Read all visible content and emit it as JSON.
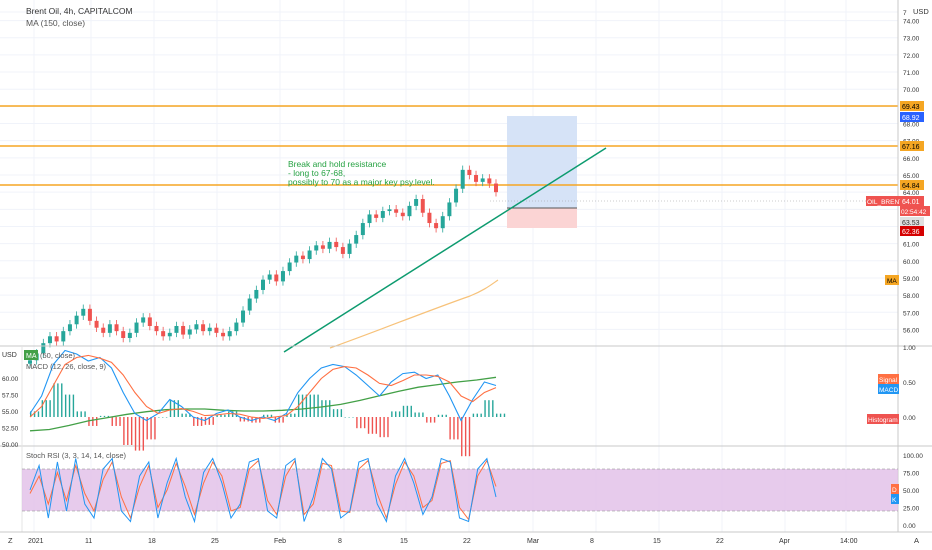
{
  "header": {
    "symbol": "Brent Oil, 4h, CAPITALCOM",
    "ma_label": "MA (150, close)",
    "currency": "USD"
  },
  "colors": {
    "up": "#26a69a",
    "down": "#ef5350",
    "orange_line": "#f5a623",
    "trend": "#0d9b6f",
    "ma": "#f7c27a",
    "macd_blue": "#2196f3",
    "signal_orange": "#ff7043",
    "ma50_green": "#43a047",
    "stoch_purple": "#e1bee7",
    "stoch_k": "#2196f3",
    "stoch_d": "#ff7043"
  },
  "annotation": [
    "Break and hold resistance",
    "- long to 67-68,",
    "possibly to 70 as a major key psy.level."
  ],
  "badges": {
    "res1": "69.43",
    "res1_blue": "68.92",
    "res2": "67.16",
    "res3": "64.84",
    "symbol": "OIL_BRENT",
    "price": "64.01",
    "countdown": "02:54:42",
    "stop1": "63.53",
    "stop2": "62.36",
    "ma": "MA",
    "signal": "Signal",
    "macd": "MACD",
    "histogram": "Histogram",
    "d": "D",
    "k": "K"
  },
  "macd_pane": {
    "usd": "USD",
    "ma_tag": "MA",
    "ma_label": "(50, close)",
    "macd_label": "MACD (12, 26, close, 9)"
  },
  "stoch_pane": {
    "label": "Stoch RSI (3, 3, 14, 14, close)"
  },
  "bottom": {
    "z_label": "Z",
    "a_label": "A",
    "time_ticks": [
      "2021",
      "11",
      "18",
      "25",
      "Feb",
      "8",
      "15",
      "22",
      "Mar",
      "8",
      "15",
      "22",
      "Apr",
      "14:00"
    ]
  },
  "chart_data": [
    {
      "type": "candlestick",
      "title": "Brent Oil, 4h, CAPITALCOM",
      "yaxis_ticks": [
        "7",
        "74.00",
        "73.00",
        "72.00",
        "71.00",
        "70.00",
        "69.00",
        "68.00",
        "67.00",
        "66.00",
        "65.00",
        "64.00",
        "63.00",
        "62.00",
        "61.00",
        "60.00",
        "59.00",
        "58.00",
        "57.00",
        "56.00"
      ],
      "ylim": [
        55.5,
        74.5
      ],
      "horizontal_levels": [
        69.43,
        67.16,
        64.84
      ],
      "last_price": 64.01,
      "trendline": {
        "x": [
          "Feb 2",
          "Mar 5"
        ],
        "y": [
          55.7,
          66.8
        ]
      },
      "ma150": {
        "x": [
          "Feb 4",
          "Feb 26"
        ],
        "y": [
          55.5,
          59.2
        ]
      },
      "long_position": {
        "entry": 64.01,
        "target": 69.0,
        "stop": 62.36
      },
      "close_path": [
        54.2,
        54.6,
        55.2,
        55.6,
        55.3,
        55.9,
        56.3,
        56.8,
        57.2,
        56.5,
        56.1,
        55.8,
        56.3,
        55.9,
        55.5,
        55.8,
        56.4,
        56.7,
        56.2,
        55.9,
        55.6,
        55.8,
        56.2,
        55.7,
        56.0,
        56.3,
        55.9,
        56.1,
        55.8,
        55.6,
        55.9,
        56.4,
        57.1,
        57.8,
        58.3,
        58.9,
        59.2,
        58.8,
        59.4,
        59.9,
        60.3,
        60.1,
        60.6,
        60.9,
        60.7,
        61.1,
        60.8,
        60.4,
        61.0,
        61.5,
        62.2,
        62.7,
        62.5,
        62.9,
        63.0,
        62.8,
        62.6,
        63.2,
        63.6,
        62.8,
        62.2,
        61.9,
        62.6,
        63.4,
        64.2,
        65.3,
        65.0,
        64.6,
        64.8,
        64.5,
        64.0
      ]
    },
    {
      "type": "line",
      "title": "MACD (12, 26, close, 9)",
      "yaxis_ticks": [
        "1.00",
        "0.50",
        "0.00"
      ],
      "ma50_ticks": [
        "60.00",
        "57.50",
        "55.00",
        "52.50",
        "50.00"
      ],
      "series": [
        {
          "name": "MACD",
          "values": [
            0.05,
            0.3,
            0.75,
            0.95,
            0.9,
            0.8,
            0.85,
            0.7,
            0.35,
            0.05,
            -0.05,
            0.05,
            0.25,
            0.15,
            0.0,
            -0.05,
            0.05,
            0.1,
            0.0,
            -0.05,
            0.0,
            -0.05,
            0.05,
            0.35,
            0.55,
            0.7,
            0.75,
            0.72,
            0.6,
            0.45,
            0.3,
            0.5,
            0.62,
            0.64,
            0.55,
            0.6,
            0.3,
            -0.05,
            0.25,
            0.5,
            0.45
          ]
        },
        {
          "name": "Signal",
          "values": [
            0.0,
            0.15,
            0.45,
            0.75,
            0.85,
            0.88,
            0.84,
            0.78,
            0.6,
            0.35,
            0.15,
            0.05,
            0.1,
            0.12,
            0.08,
            0.02,
            0.03,
            0.05,
            0.04,
            0.0,
            -0.02,
            0.0,
            0.02,
            0.15,
            0.35,
            0.55,
            0.68,
            0.72,
            0.7,
            0.6,
            0.48,
            0.45,
            0.52,
            0.6,
            0.6,
            0.58,
            0.5,
            0.3,
            0.22,
            0.35,
            0.42
          ]
        },
        {
          "name": "MA",
          "values": [
            52.0,
            52.2,
            52.8,
            53.5,
            54.0,
            54.5,
            54.9,
            55.2,
            55.3,
            55.3,
            55.1,
            55.0,
            55.0,
            55.1,
            55.3,
            55.6,
            56.0,
            56.6,
            57.3,
            58.0,
            58.6,
            59.0,
            59.4,
            59.7,
            60.1
          ]
        }
      ]
    },
    {
      "type": "line",
      "title": "Stoch RSI (3, 3, 14, 14, close)",
      "yaxis_ticks": [
        "100.00",
        "75.00",
        "50.00",
        "25.00",
        "0.00"
      ],
      "ylim": [
        0,
        100
      ],
      "bands": [
        80,
        20
      ],
      "series": [
        {
          "name": "K",
          "values": [
            50,
            85,
            10,
            90,
            20,
            95,
            30,
            10,
            80,
            95,
            20,
            5,
            70,
            90,
            10,
            60,
            95,
            40,
            5,
            75,
            95,
            60,
            10,
            30,
            90,
            95,
            20,
            10,
            85,
            95,
            5,
            40,
            95,
            80,
            10,
            20,
            90,
            95,
            30,
            5,
            70,
            95,
            60,
            15,
            40,
            95,
            90,
            10,
            5,
            80,
            95,
            40
          ]
        },
        {
          "name": "D",
          "values": [
            45,
            70,
            30,
            75,
            35,
            85,
            45,
            20,
            65,
            90,
            40,
            10,
            55,
            85,
            25,
            50,
            88,
            55,
            15,
            60,
            90,
            70,
            20,
            25,
            80,
            92,
            35,
            15,
            70,
            92,
            15,
            30,
            88,
            85,
            20,
            18,
            80,
            92,
            45,
            10,
            58,
            90,
            70,
            25,
            35,
            88,
            92,
            25,
            8,
            70,
            92,
            55
          ]
        }
      ]
    }
  ]
}
